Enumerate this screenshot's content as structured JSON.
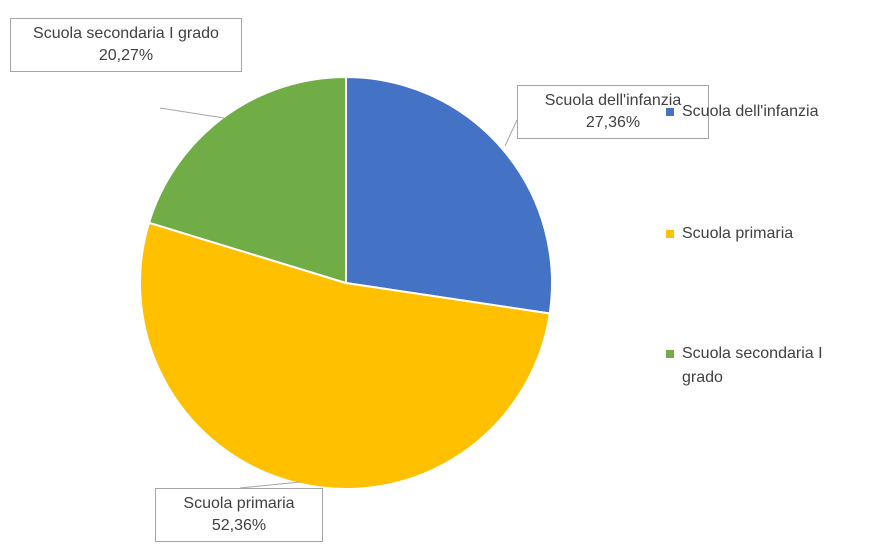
{
  "chart_data": {
    "type": "pie",
    "categories": [
      "Scuola dell'infanzia",
      "Scuola primaria",
      "Scuola secondaria I grado"
    ],
    "values": [
      27.36,
      52.36,
      20.27
    ],
    "value_labels": [
      "27,36%",
      "52,36%",
      "20,27%"
    ],
    "colors": [
      "#4472c4",
      "#ffc000",
      "#70ad47"
    ],
    "legend": "right"
  }
}
